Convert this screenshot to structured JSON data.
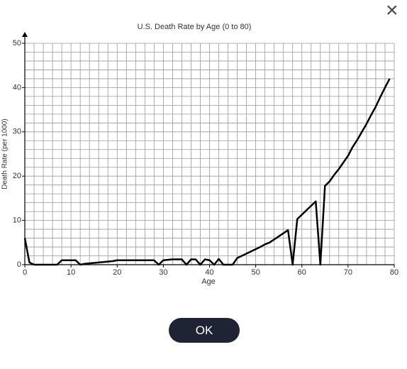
{
  "dialog": {
    "close_icon": "×",
    "button": "OK"
  },
  "chart_data": {
    "type": "line",
    "title": "U.S. Death Rate by Age (0 to 80)",
    "x_label": "Age",
    "y_label": "Death Rate (per 1000)",
    "color": "#000000",
    "x": [
      0,
      1,
      2,
      3,
      4,
      5,
      6,
      7,
      8,
      9,
      10,
      11,
      12,
      13,
      14,
      15,
      16,
      17,
      18,
      19,
      20,
      21,
      22,
      23,
      24,
      25,
      26,
      27,
      28,
      29,
      30,
      31,
      32,
      33,
      34,
      35,
      36,
      37,
      38,
      39,
      40,
      41,
      42,
      43,
      44,
      45,
      46,
      47,
      48,
      49,
      50,
      51,
      52,
      53,
      54,
      55,
      56,
      57,
      58,
      59,
      60,
      61,
      62,
      63,
      64,
      65,
      66,
      67,
      68,
      69,
      70,
      71,
      72,
      73,
      74,
      75,
      76,
      77,
      78,
      79
    ],
    "values": [
      6,
      0.5,
      0,
      0,
      0,
      0,
      0,
      0,
      1,
      1,
      1,
      1,
      0,
      0.2,
      0.3,
      0.4,
      0.5,
      0.6,
      0.7,
      0.8,
      1,
      1,
      1,
      1,
      1,
      1,
      1,
      1,
      1,
      0,
      1,
      1.1,
      1.2,
      1.2,
      1.2,
      0,
      1.2,
      1.2,
      0,
      1.2,
      1,
      0,
      1.3,
      0,
      0,
      0,
      1.5,
      2,
      2.5,
      3,
      3.5,
      4,
      4.6,
      5,
      5.7,
      6.4,
      7.1,
      7.8,
      0,
      10.3,
      11.3,
      12.3,
      13.3,
      14.3,
      0,
      17.8,
      18.8,
      20.3,
      21.6,
      23.1,
      24.6,
      26.6,
      28.2,
      30,
      31.8,
      33.8,
      35.7,
      37.9,
      40,
      42
    ],
    "xlim": [
      0,
      80
    ],
    "ylim": [
      0,
      50
    ],
    "xticks": [
      0,
      10,
      20,
      30,
      40,
      50,
      60,
      70,
      80
    ],
    "yticks": [
      0,
      10,
      20,
      30,
      40,
      50
    ],
    "xgrid": [
      0,
      2,
      4,
      6,
      8,
      10,
      12,
      14,
      16,
      18,
      20,
      22,
      24,
      26,
      28,
      30,
      32,
      34,
      36,
      38,
      40,
      42,
      44,
      46,
      48,
      50,
      52,
      54,
      56,
      58,
      60,
      62,
      64,
      66,
      68,
      70,
      72,
      74,
      76,
      78,
      80
    ],
    "ygrid": [
      0,
      2,
      4,
      6,
      8,
      10,
      12,
      14,
      16,
      18,
      20,
      22,
      24,
      26,
      28,
      30,
      32,
      34,
      36,
      38,
      40,
      42,
      44,
      46,
      48,
      50
    ]
  }
}
